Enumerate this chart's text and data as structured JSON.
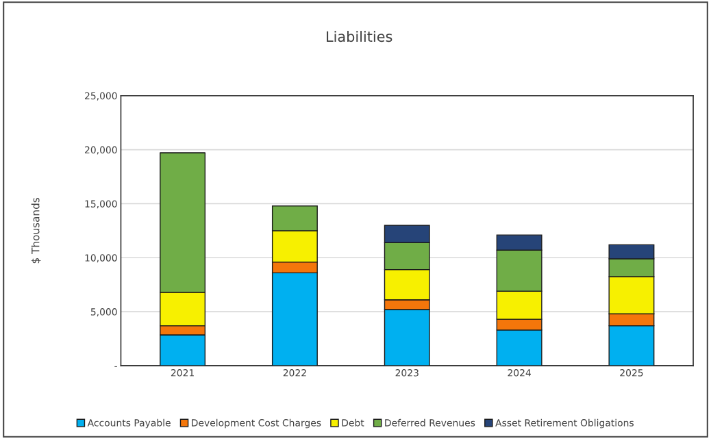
{
  "chart_data": {
    "type": "bar",
    "title": "Liabilities",
    "ylabel": "$ Thousands",
    "categories": [
      "2021",
      "2022",
      "2023",
      "2024",
      "2025"
    ],
    "stacked": true,
    "series": [
      {
        "name": "Accounts Payable",
        "color": "#00b0f0",
        "values": [
          2850,
          8600,
          5200,
          3300,
          3700
        ]
      },
      {
        "name": "Development Cost Charges",
        "color": "#f4760b",
        "values": [
          850,
          1000,
          900,
          1000,
          1100
        ]
      },
      {
        "name": "Debt",
        "color": "#f7f000",
        "values": [
          3100,
          2900,
          2800,
          2600,
          3450
        ]
      },
      {
        "name": "Deferred Revenues",
        "color": "#70ad47",
        "values": [
          12900,
          2300,
          2500,
          3800,
          1650
        ]
      },
      {
        "name": "Asset Retirement Obligations",
        "color": "#264478",
        "values": [
          null,
          null,
          1600,
          1400,
          1300
        ]
      }
    ],
    "ylim": [
      0,
      25000
    ],
    "yticks": [
      {
        "value": 0,
        "label": "-"
      },
      {
        "value": 5000,
        "label": "5,000"
      },
      {
        "value": 10000,
        "label": "10,000"
      },
      {
        "value": 15000,
        "label": "15,000"
      },
      {
        "value": 20000,
        "label": "20,000"
      },
      {
        "value": 25000,
        "label": "25,000"
      }
    ],
    "grid": "y",
    "legend": "bottom"
  }
}
